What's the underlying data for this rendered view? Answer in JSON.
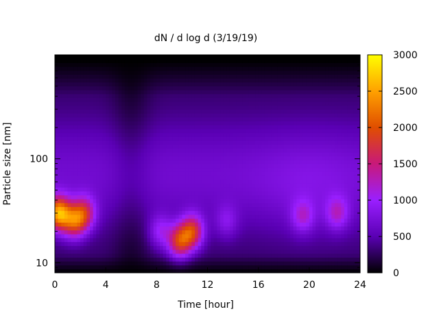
{
  "chart_data": {
    "type": "heatmap",
    "title": "dN / d log d (3/19/19)",
    "xlabel": "Time [hour]",
    "ylabel": "Particle size [nm]",
    "xlim": [
      0,
      24
    ],
    "xticks": [
      "0",
      "4",
      "8",
      "12",
      "16",
      "20",
      "24"
    ],
    "ylim": [
      8,
      1000
    ],
    "yscale": "log",
    "yticks": [
      "10",
      "100"
    ],
    "colorbar": {
      "min": 0,
      "max": 3000,
      "ticks": [
        "0",
        "500",
        "1000",
        "1500",
        "2000",
        "2500",
        "3000"
      ],
      "colormap": [
        "#000000",
        "#5a00b4",
        "#9a1fff",
        "#c8197a",
        "#e04e00",
        "#ffa100",
        "#ffff00"
      ]
    },
    "features": [
      {
        "time": 0.3,
        "size_nm": 30,
        "value": 2500
      },
      {
        "time": 1.5,
        "size_nm": 25,
        "value": 1800
      },
      {
        "time": 2.3,
        "size_nm": 30,
        "value": 1600
      },
      {
        "time": 8.3,
        "size_nm": 20,
        "value": 1100
      },
      {
        "time": 9.8,
        "size_nm": 16,
        "value": 1900
      },
      {
        "time": 10.8,
        "size_nm": 20,
        "value": 1900
      },
      {
        "time": 13.5,
        "size_nm": 25,
        "value": 900
      },
      {
        "time": 19.5,
        "size_nm": 28,
        "value": 1100
      },
      {
        "time": 22.2,
        "size_nm": 30,
        "value": 1150
      }
    ]
  }
}
